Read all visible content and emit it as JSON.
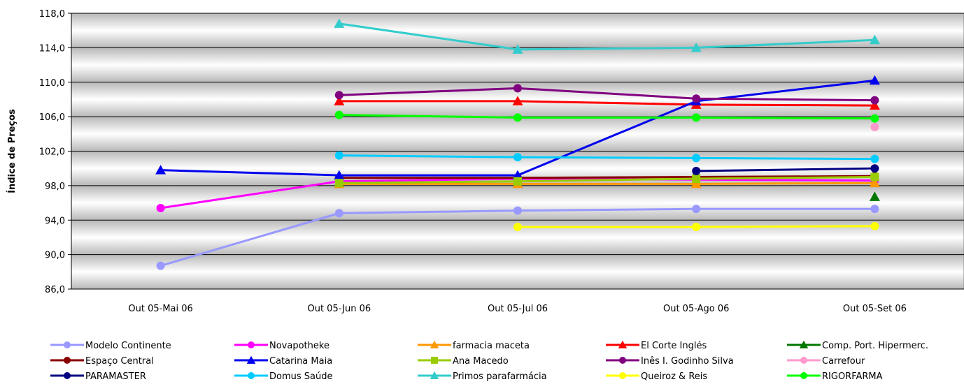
{
  "chart_data": {
    "type": "line",
    "title": "",
    "xlabel": "",
    "ylabel": "Índice de Preços",
    "categories": [
      "Out 05-Mai 06",
      "Out 05-Jun 06",
      "Out 05-Jul 06",
      "Out 05-Ago 06",
      "Out 05-Set 06"
    ],
    "ylim": [
      86.0,
      118.0
    ],
    "yticks": [
      "86,0",
      "90,0",
      "94,0",
      "98,0",
      "102,0",
      "106,0",
      "110,0",
      "114,0",
      "118,0"
    ],
    "grid": true,
    "legend_position": "bottom",
    "series": [
      {
        "name": "Modelo Continente",
        "color": "#9999ff",
        "marker": "circle",
        "values": [
          88.7,
          94.8,
          95.1,
          95.3,
          95.3
        ]
      },
      {
        "name": "Novapotheke",
        "color": "#ff00ff",
        "marker": "circle",
        "values": [
          95.4,
          98.5,
          98.8,
          98.7,
          98.6
        ]
      },
      {
        "name": "farmacia maceta",
        "color": "#ff9900",
        "marker": "triangle",
        "values": [
          null,
          98.2,
          98.2,
          98.2,
          98.3
        ]
      },
      {
        "name": "El Corte Inglés",
        "color": "#ff0000",
        "marker": "triangle",
        "values": [
          null,
          107.8,
          107.8,
          107.4,
          107.3
        ]
      },
      {
        "name": "Comp. Port. Hipermerc.",
        "color": "#007700",
        "marker": "triangle",
        "values": [
          null,
          null,
          null,
          null,
          96.7
        ]
      },
      {
        "name": "Espaço Central",
        "color": "#880000",
        "marker": "circle",
        "values": [
          null,
          98.9,
          98.9,
          99.0,
          99.1
        ]
      },
      {
        "name": "Catarina Maia",
        "color": "#0000ee",
        "marker": "triangle",
        "values": [
          99.8,
          99.2,
          99.2,
          107.8,
          110.2
        ]
      },
      {
        "name": "Ana Macedo",
        "color": "#99cc00",
        "marker": "square",
        "values": [
          null,
          98.3,
          98.5,
          98.8,
          99.0
        ]
      },
      {
        "name": "Inês I. Godinho Silva",
        "color": "#800080",
        "marker": "circle",
        "values": [
          null,
          108.5,
          109.3,
          108.1,
          107.9
        ]
      },
      {
        "name": "Carrefour",
        "color": "#ff99cc",
        "marker": "circle",
        "values": [
          null,
          null,
          null,
          null,
          104.8
        ]
      },
      {
        "name": "PARAMASTER",
        "color": "#000080",
        "marker": "circle",
        "values": [
          null,
          null,
          null,
          99.7,
          100.0
        ]
      },
      {
        "name": "Domus Saúde",
        "color": "#00ccff",
        "marker": "circle",
        "values": [
          null,
          101.5,
          101.3,
          101.2,
          101.1
        ]
      },
      {
        "name": "Primos parafarmácia",
        "color": "#33cccc",
        "marker": "triangle",
        "values": [
          null,
          116.8,
          113.8,
          114.0,
          114.9
        ]
      },
      {
        "name": "Queiroz & Reis",
        "color": "#ffff00",
        "marker": "circle",
        "values": [
          null,
          null,
          93.2,
          93.2,
          93.3
        ]
      },
      {
        "name": "RIGORFARMA",
        "color": "#00ff00",
        "marker": "circle",
        "values": [
          null,
          106.2,
          105.9,
          105.9,
          105.8
        ]
      }
    ]
  }
}
